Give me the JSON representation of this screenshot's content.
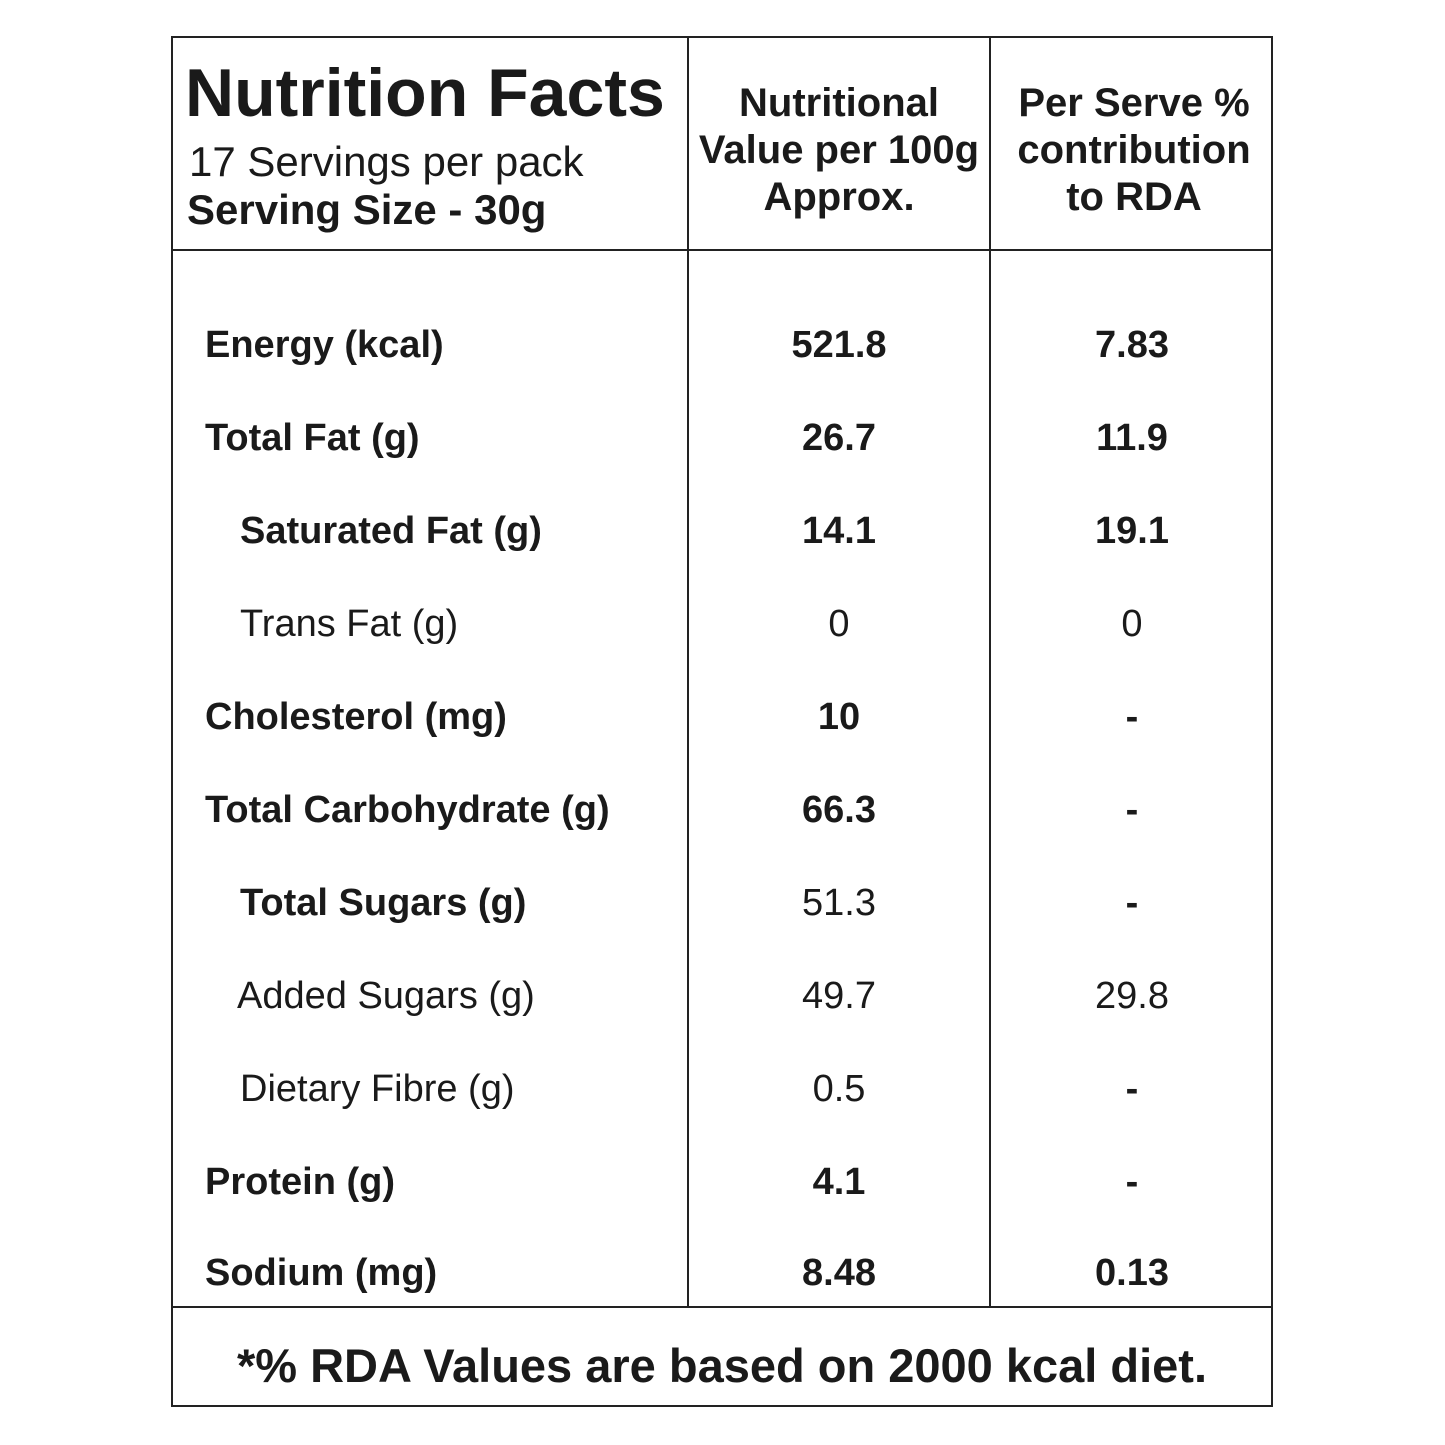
{
  "header": {
    "title": "Nutrition Facts",
    "servings": "17 Servings per pack",
    "serving_size": "Serving Size - 30g"
  },
  "columns": {
    "per100": [
      "Nutritional",
      "Value per 100g",
      "Approx."
    ],
    "rda": [
      "Per Serve %",
      "contribution",
      "to RDA"
    ]
  },
  "rows": [
    {
      "label": "Energy (kcal)",
      "per100": "521.8",
      "rda": "7.83"
    },
    {
      "label": "Total Fat (g)",
      "per100": "26.7",
      "rda": "11.9"
    },
    {
      "label": "Saturated Fat (g)",
      "per100": "14.1",
      "rda": "19.1"
    },
    {
      "label": "Trans Fat (g)",
      "per100": "0",
      "rda": "0"
    },
    {
      "label": "Cholesterol (mg)",
      "per100": "10",
      "rda": "-"
    },
    {
      "label": "Total Carbohydrate (g)",
      "per100": "66.3",
      "rda": "-"
    },
    {
      "label": "Total Sugars (g)",
      "per100": "51.3",
      "rda": "-"
    },
    {
      "label": "Added Sugars (g)",
      "per100": "49.7",
      "rda": "29.8"
    },
    {
      "label": "Dietary Fibre (g)",
      "per100": "0.5",
      "rda": "-"
    },
    {
      "label": "Protein (g)",
      "per100": "4.1",
      "rda": "-"
    },
    {
      "label": "Sodium (mg)",
      "per100": "8.48",
      "rda": "0.13"
    }
  ],
  "footer": "*% RDA Values are based on 2000 kcal diet."
}
